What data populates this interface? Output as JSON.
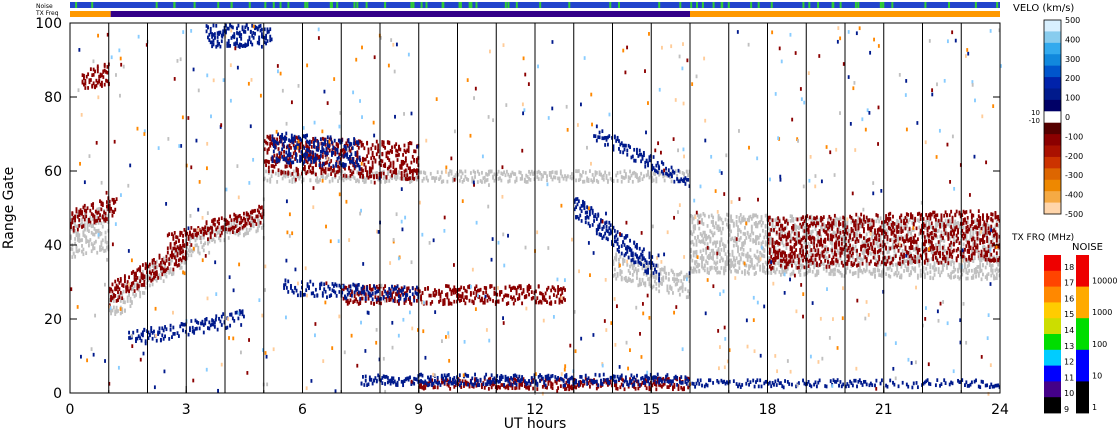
{
  "chart_data": {
    "type": "heatmap",
    "title": "",
    "xlabel": "UT hours",
    "ylabel": "Range Gate",
    "xlim": [
      0,
      24
    ],
    "ylim": [
      0,
      100
    ],
    "x_ticks": [
      0,
      3,
      6,
      9,
      12,
      15,
      18,
      21,
      24
    ],
    "y_ticks": [
      0,
      20,
      40,
      60,
      80,
      100
    ],
    "status_bars": {
      "noise_label": "Noise",
      "txfreq_label": "TX Freq",
      "txfreq_segments": [
        {
          "from": 0,
          "to": 1.05,
          "color": "#ff9900"
        },
        {
          "from": 1.05,
          "to": 16,
          "color": "#330088"
        },
        {
          "from": 16,
          "to": 24,
          "color": "#ff9900"
        }
      ]
    },
    "velocity_scale": {
      "label": "VELO (km/s)",
      "ticks": [
        500,
        400,
        300,
        200,
        100,
        0,
        -100,
        -200,
        -300,
        -400,
        -500
      ],
      "inner_ticks": [
        "10",
        "-10"
      ]
    },
    "txfreq_scale": {
      "label": "TX FRQ (MHz)",
      "ticks": [
        18,
        17,
        16,
        15,
        14,
        13,
        12,
        11,
        10,
        9
      ],
      "colors": [
        "#ee0000",
        "#ff4400",
        "#ff8800",
        "#ffcc00",
        "#ccdd00",
        "#00dd00",
        "#00ccff",
        "#0000ff",
        "#440088",
        "#000000"
      ]
    },
    "noise_scale": {
      "label": "NOISE",
      "ticks": [
        "10000",
        "1000",
        "100",
        "10",
        "1"
      ],
      "colors": [
        "#ee0000",
        "#ffaa00",
        "#00dd00",
        "#0000ff",
        "#000000"
      ]
    },
    "colors": {
      "ground_scatter": "#c0c0c0",
      "positive_velocity": "#001a8c",
      "negative_velocity": "#8b0000"
    },
    "scatter_bands": [
      {
        "kind": "ground",
        "t0": 0.0,
        "g0": 42,
        "t1": 1.0,
        "g1": 44,
        "thick": 12
      },
      {
        "kind": "ground",
        "t0": 1.0,
        "g0": 22,
        "t1": 3.5,
        "g1": 42,
        "thick": 7
      },
      {
        "kind": "ground",
        "t0": 3.5,
        "g0": 42,
        "t1": 5.0,
        "g1": 46,
        "thick": 5
      },
      {
        "kind": "ground",
        "t0": 5.0,
        "g0": 58,
        "t1": 16.0,
        "g1": 58,
        "thick": 3
      },
      {
        "kind": "ground",
        "t0": 14.0,
        "g0": 34,
        "t1": 16.0,
        "g1": 28,
        "thick": 7
      },
      {
        "kind": "ground",
        "t0": 16.0,
        "g0": 40,
        "t1": 24.0,
        "g1": 38,
        "thick": 16
      },
      {
        "kind": "neg",
        "t0": 0.3,
        "g0": 84,
        "t1": 1.0,
        "g1": 86,
        "thick": 6
      },
      {
        "kind": "neg",
        "t0": 0.0,
        "g0": 46,
        "t1": 1.2,
        "g1": 50,
        "thick": 6
      },
      {
        "kind": "neg",
        "t0": 1.0,
        "g0": 26,
        "t1": 3.0,
        "g1": 38,
        "thick": 6
      },
      {
        "kind": "neg",
        "t0": 2.5,
        "g0": 40,
        "t1": 5.0,
        "g1": 48,
        "thick": 5
      },
      {
        "kind": "neg",
        "t0": 5.0,
        "g0": 64,
        "t1": 9.0,
        "g1": 62,
        "thick": 10
      },
      {
        "kind": "neg",
        "t0": 7.0,
        "g0": 26,
        "t1": 12.8,
        "g1": 26,
        "thick": 5
      },
      {
        "kind": "neg",
        "t0": 9.0,
        "g0": 2,
        "t1": 16.0,
        "g1": 2,
        "thick": 3
      },
      {
        "kind": "neg",
        "t0": 18.0,
        "g0": 40,
        "t1": 24.0,
        "g1": 42,
        "thick": 14
      },
      {
        "kind": "pos",
        "t0": 1.5,
        "g0": 14,
        "t1": 4.5,
        "g1": 20,
        "thick": 4
      },
      {
        "kind": "pos",
        "t0": 5.5,
        "g0": 28,
        "t1": 9.0,
        "g1": 26,
        "thick": 4
      },
      {
        "kind": "pos",
        "t0": 5.2,
        "g0": 66,
        "t1": 7.5,
        "g1": 64,
        "thick": 8
      },
      {
        "kind": "pos",
        "t0": 13.0,
        "g0": 50,
        "t1": 15.2,
        "g1": 32,
        "thick": 6
      },
      {
        "kind": "pos",
        "t0": 13.5,
        "g0": 70,
        "t1": 16.0,
        "g1": 56,
        "thick": 4
      },
      {
        "kind": "pos",
        "t0": 7.5,
        "g0": 3,
        "t1": 16.0,
        "g1": 3,
        "thick": 3
      },
      {
        "kind": "pos",
        "t0": 16.0,
        "g0": 2,
        "t1": 24.0,
        "g1": 2,
        "thick": 2
      },
      {
        "kind": "pos",
        "t0": 3.5,
        "g0": 96,
        "t1": 5.2,
        "g1": 96,
        "thick": 6
      }
    ]
  }
}
